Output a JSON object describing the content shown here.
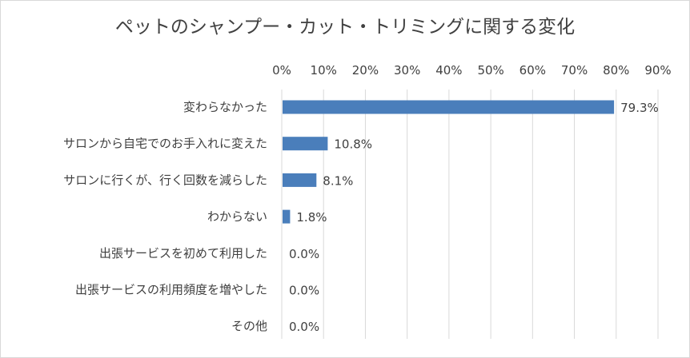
{
  "chart_data": {
    "type": "bar",
    "orientation": "horizontal",
    "title": "ペットのシャンプー・カット・トリミングに関する変化",
    "categories": [
      "変わらなかった",
      "サロンから自宅でのお手入れに変えた",
      "サロンに行くが、行く回数を減らした",
      "わからない",
      "出張サービスを初めて利用した",
      "出張サービスの利用頻度を増やした",
      "その他"
    ],
    "values": [
      79.3,
      10.8,
      8.1,
      1.8,
      0.0,
      0.0,
      0.0
    ],
    "value_labels": [
      "79.3%",
      "10.8%",
      "8.1%",
      "1.8%",
      "0.0%",
      "0.0%",
      "0.0%"
    ],
    "xlim": [
      0,
      90
    ],
    "xticks": [
      "0%",
      "10%",
      "20%",
      "30%",
      "40%",
      "50%",
      "60%",
      "70%",
      "80%",
      "90%"
    ],
    "xaxis_position": "top",
    "grid": true,
    "legend": "none",
    "bar_color": "#4a7ebb",
    "grid_color": "#d9d9d9"
  }
}
